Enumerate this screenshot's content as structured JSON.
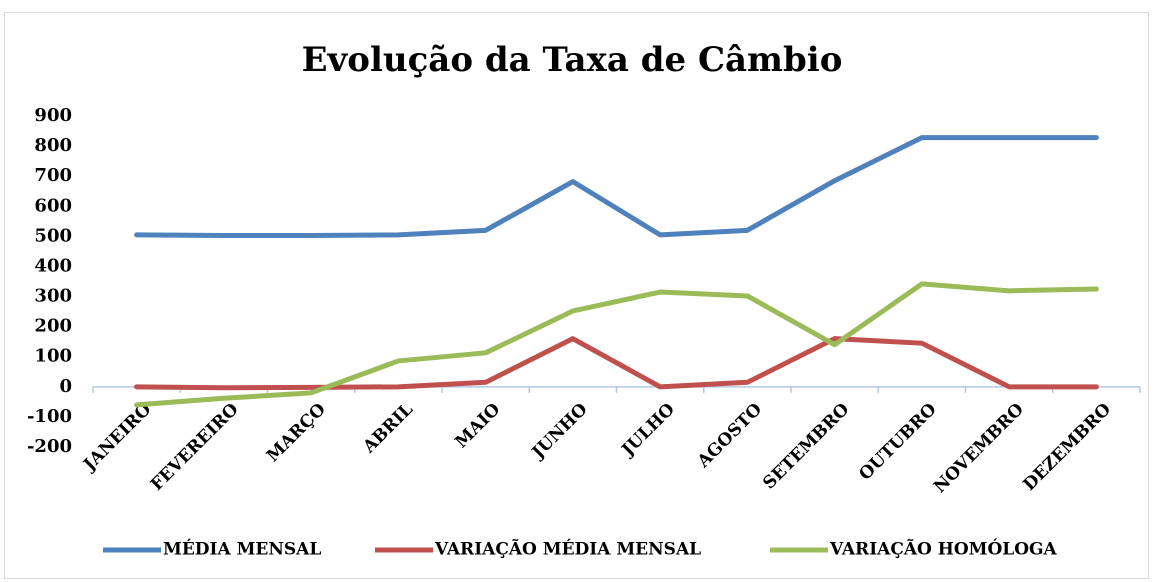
{
  "chart_data": {
    "type": "line",
    "title": "Evolução da Taxa de Câmbio",
    "categories": [
      "JANEIRO",
      "FEVEREIRO",
      "MARÇO",
      "ABRIL",
      "MAIO",
      "JUNHO",
      "JULHO",
      "AGOSTO",
      "SETEMBRO",
      "OUTUBRO",
      "NOVEMBRO",
      "DEZEMBRO"
    ],
    "series": [
      {
        "name": "MÉDIA MENSAL",
        "color": "#4f81bd",
        "values": [
          505,
          503,
          503,
          505,
          520,
          682,
          505,
          520,
          685,
          828,
          828,
          828
        ]
      },
      {
        "name": "VARIAÇÃO MÉDIA MENSAL",
        "color": "#c0504d",
        "values": [
          0,
          -3,
          -2,
          0,
          15,
          160,
          0,
          15,
          160,
          145,
          0,
          0
        ]
      },
      {
        "name": "VARIAÇÃO HOMÓLOGA",
        "color": "#9bbb59",
        "values": [
          -60,
          -38,
          -20,
          86,
          113,
          252,
          315,
          302,
          140,
          342,
          319,
          325
        ]
      }
    ],
    "ylim": [
      -200,
      900
    ],
    "yticks": [
      -200,
      -100,
      0,
      100,
      200,
      300,
      400,
      500,
      600,
      700,
      800,
      900
    ],
    "grid": false,
    "legend": "bottom"
  }
}
